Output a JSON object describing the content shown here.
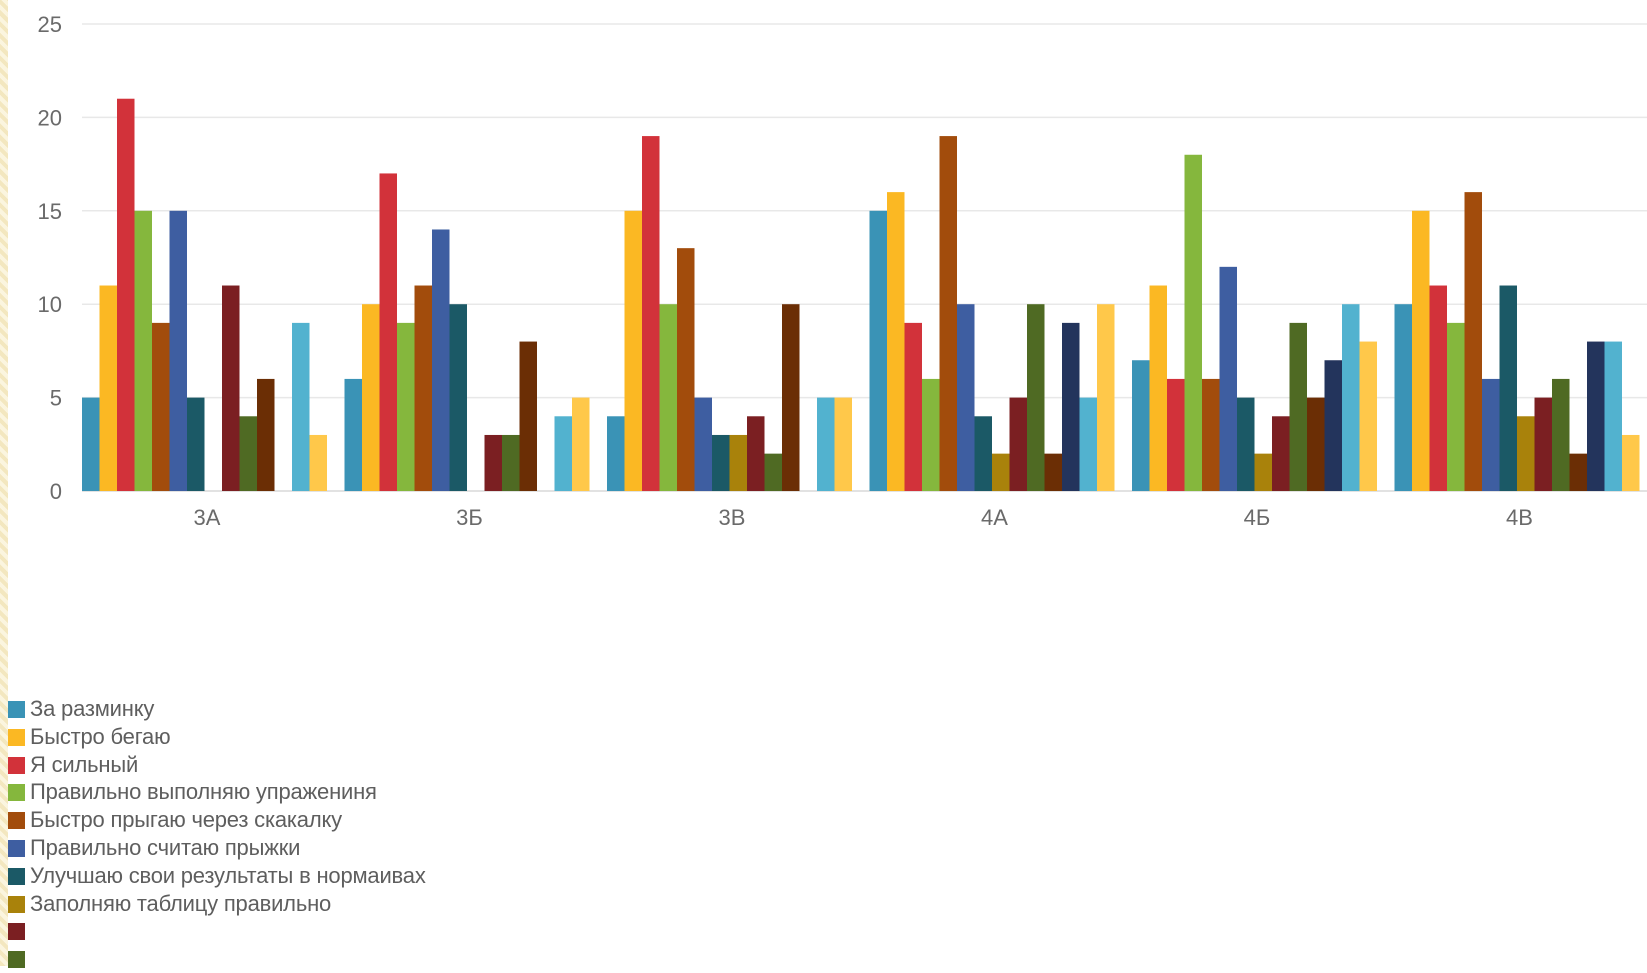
{
  "chart_data": {
    "type": "bar",
    "title": "",
    "xlabel": "",
    "ylabel": "",
    "ylim": [
      0,
      25
    ],
    "yticks": [
      0,
      5,
      10,
      15,
      20,
      25
    ],
    "grid": true,
    "legend_position": "bottom-left",
    "categories": [
      "3А",
      "3Б",
      "3В",
      "4А",
      "4Б",
      "4В"
    ],
    "series": [
      {
        "name": "За разминку",
        "color": "#3a93b6",
        "values": [
          5,
          6,
          4,
          15,
          7,
          10
        ]
      },
      {
        "name": "Быстро бегаю",
        "color": "#fbb823",
        "values": [
          11,
          10,
          15,
          16,
          11,
          15
        ]
      },
      {
        "name": "Я сильный",
        "color": "#d2323a",
        "values": [
          21,
          17,
          19,
          9,
          6,
          11
        ]
      },
      {
        "name": "Правильно выполняю упражениня",
        "color": "#85b73d",
        "values": [
          15,
          9,
          10,
          6,
          18,
          9
        ]
      },
      {
        "name": "Быстро прыгаю через скакалку",
        "color": "#a24c0c",
        "values": [
          9,
          11,
          13,
          19,
          6,
          16
        ]
      },
      {
        "name": "Правильно считаю прыжки",
        "color": "#3e5ea1",
        "values": [
          15,
          14,
          5,
          10,
          12,
          6
        ]
      },
      {
        "name": "Улучшаю свои результаты в нормаивах",
        "color": "#1b5966",
        "values": [
          5,
          10,
          3,
          4,
          5,
          11
        ]
      },
      {
        "name": "Заполняю таблицу правильно",
        "color": "#a9820b",
        "values": [
          0,
          0,
          3,
          2,
          2,
          4
        ]
      },
      {
        "color": "#7b1f22",
        "values": [
          11,
          3,
          4,
          5,
          4,
          5
        ]
      },
      {
        "color": "#4f6a23",
        "values": [
          4,
          3,
          2,
          10,
          9,
          6
        ]
      },
      {
        "color": "#6b2e05",
        "values": [
          6,
          8,
          10,
          2,
          5,
          2
        ]
      },
      {
        "color": "#23345c",
        "values": [
          0,
          0,
          0,
          9,
          7,
          8
        ]
      },
      {
        "color": "#52b2cf",
        "values": [
          9,
          4,
          5,
          5,
          10,
          8
        ]
      },
      {
        "color": "#ffc84a",
        "values": [
          3,
          5,
          5,
          10,
          8,
          3
        ]
      }
    ]
  }
}
